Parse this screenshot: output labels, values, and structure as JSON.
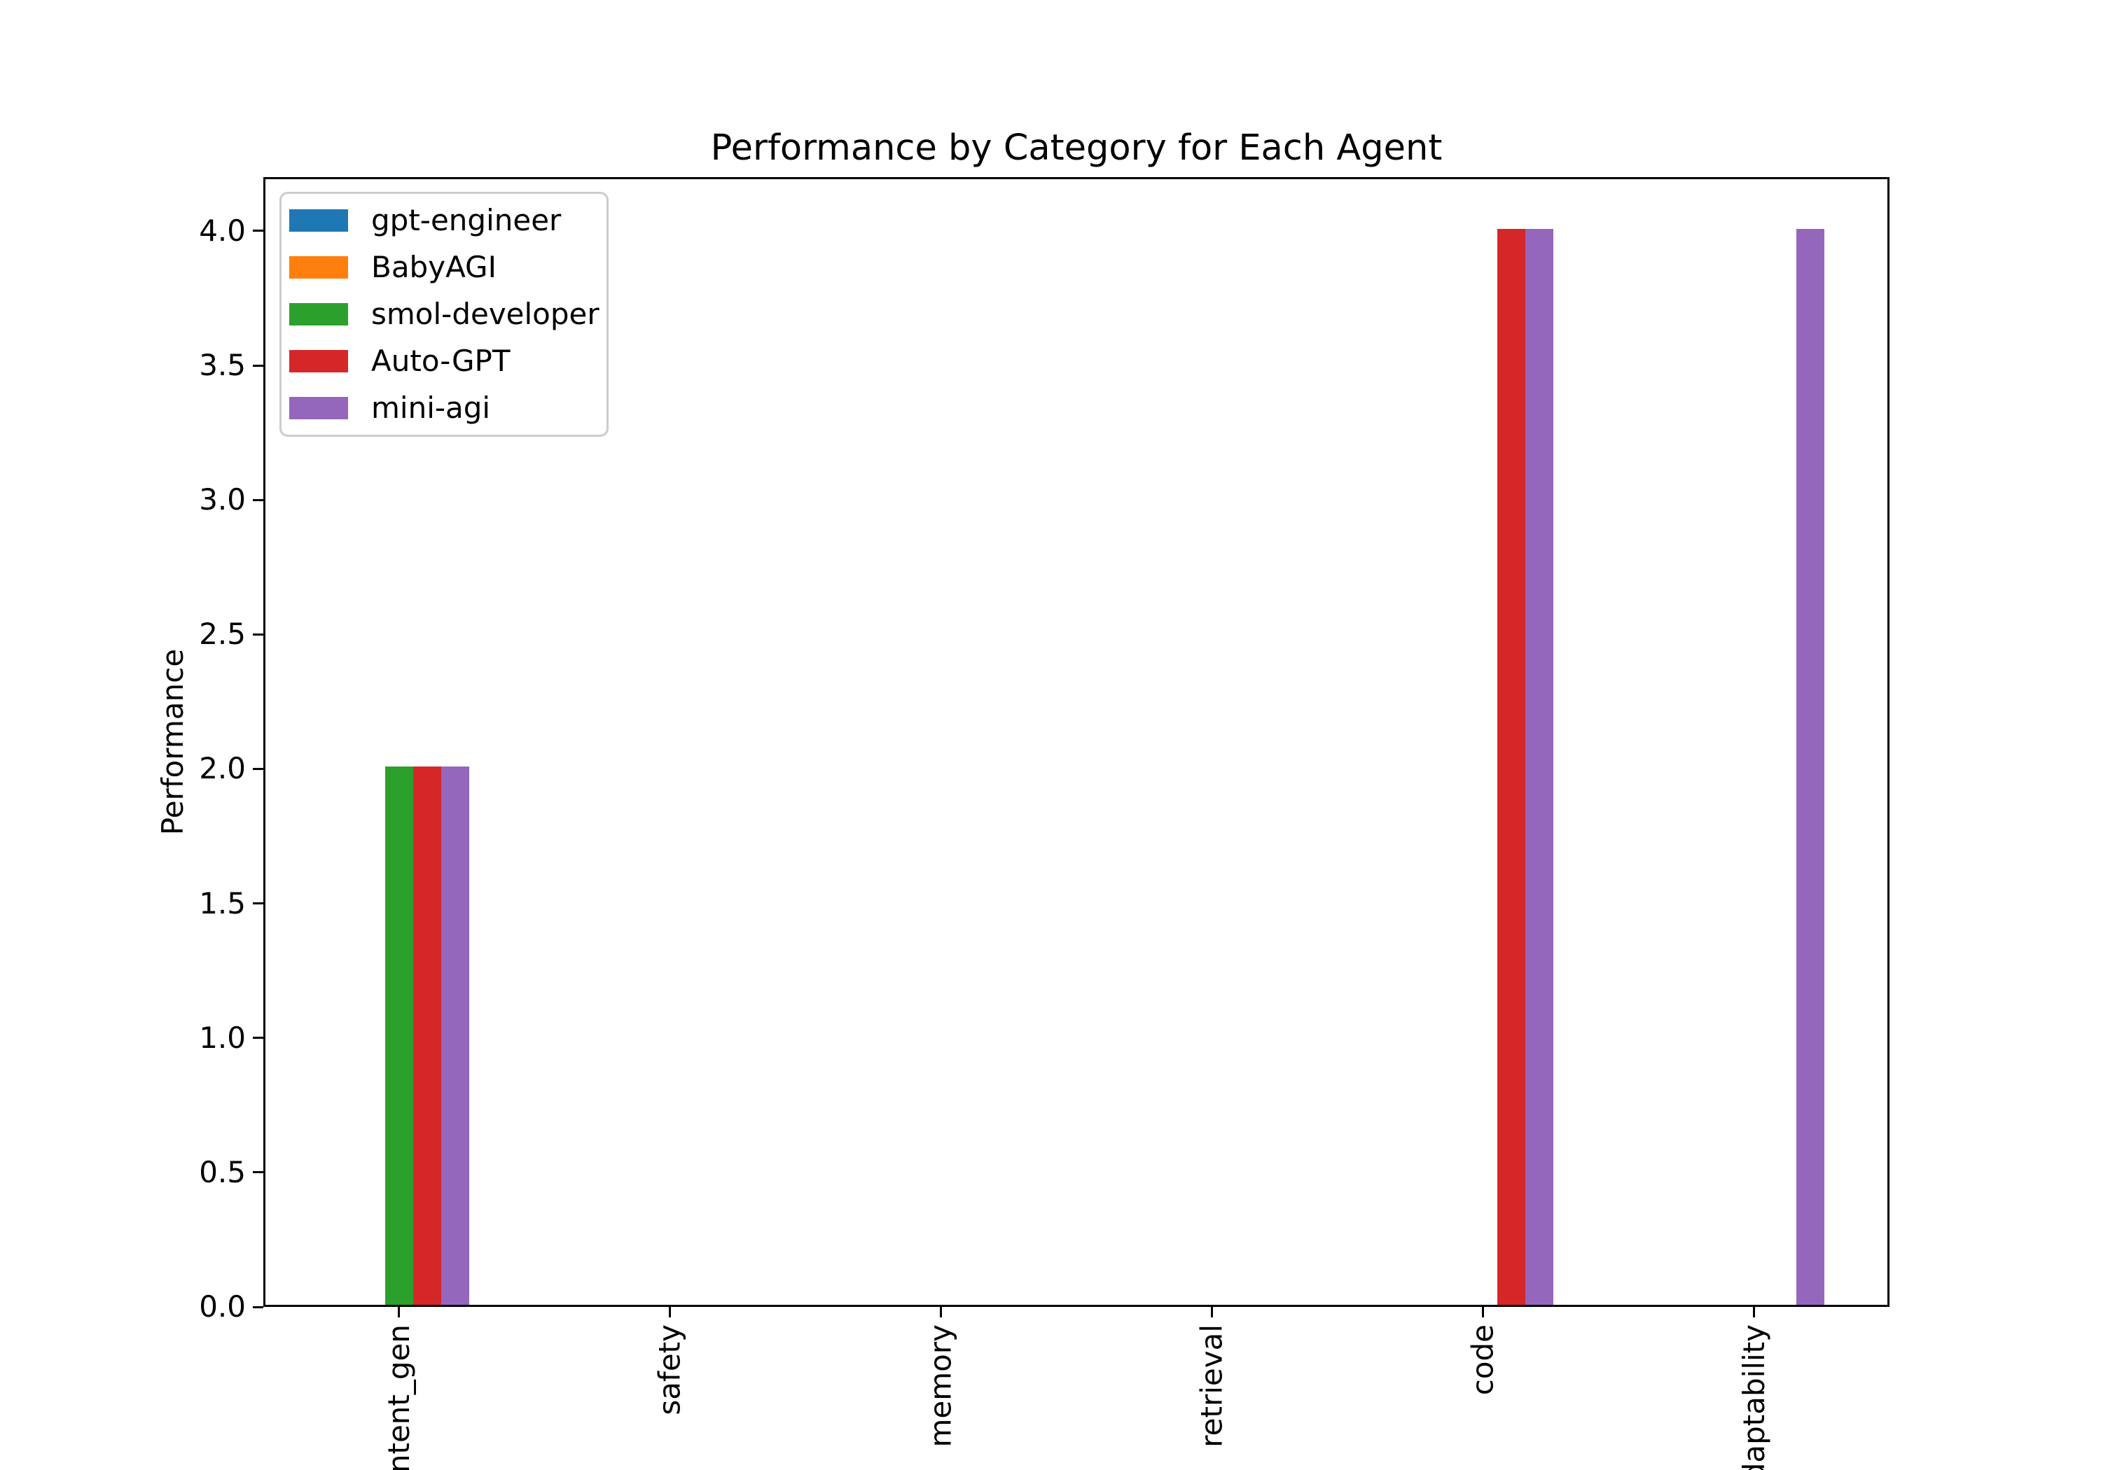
{
  "chart_data": {
    "type": "bar",
    "title": "Performance by Category for Each Agent",
    "xlabel": "",
    "ylabel": "Performance",
    "categories": [
      "content_gen",
      "safety",
      "memory",
      "retrieval",
      "code",
      "adaptability"
    ],
    "series": [
      {
        "name": "gpt-engineer",
        "color": "#1f77b4",
        "values": [
          0,
          0,
          0,
          0,
          0,
          0
        ]
      },
      {
        "name": "BabyAGI",
        "color": "#ff7f0e",
        "values": [
          0,
          0,
          0,
          0,
          0,
          0
        ]
      },
      {
        "name": "smol-developer",
        "color": "#2ca02c",
        "values": [
          2,
          0,
          0,
          0,
          0,
          0
        ]
      },
      {
        "name": "Auto-GPT",
        "color": "#d62728",
        "values": [
          2,
          0,
          0,
          0,
          4,
          0
        ]
      },
      {
        "name": "mini-agi",
        "color": "#9467bd",
        "values": [
          2,
          0,
          0,
          0,
          4,
          4
        ]
      }
    ],
    "yticks": [
      0.0,
      0.5,
      1.0,
      1.5,
      2.0,
      2.5,
      3.0,
      3.5,
      4.0
    ],
    "ylim": [
      0,
      4.2
    ],
    "xtick_rotation_deg": 90,
    "grid": false,
    "legend_position": "upper left",
    "spine_color": "#000000",
    "background_color": "#ffffff"
  }
}
